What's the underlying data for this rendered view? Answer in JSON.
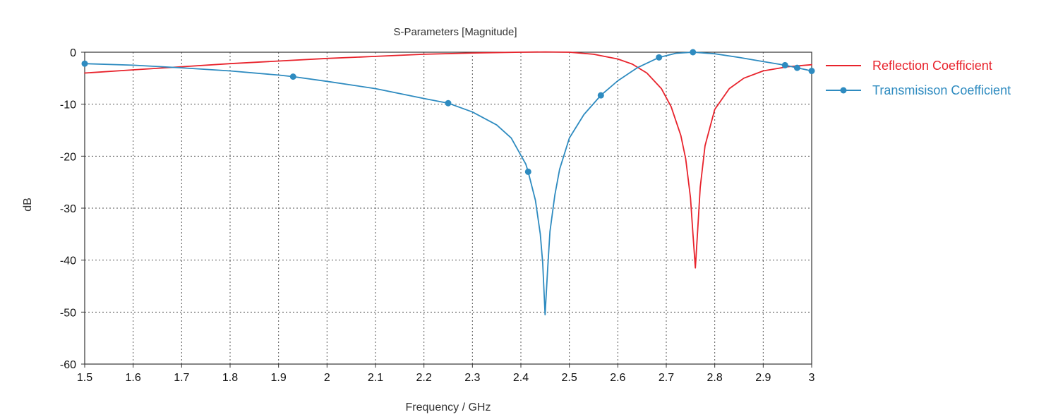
{
  "chart_data": {
    "type": "line",
    "title": "S-Parameters [Magnitude]",
    "xlabel": "Frequency / GHz",
    "ylabel": "dB",
    "xlim": [
      1.5,
      3.0
    ],
    "ylim": [
      -60,
      0
    ],
    "xticks": [
      1.5,
      1.6,
      1.7,
      1.8,
      1.9,
      2.0,
      2.1,
      2.2,
      2.3,
      2.4,
      2.5,
      2.6,
      2.7,
      2.8,
      2.9,
      3.0
    ],
    "xtick_labels": [
      "1.5",
      "1.6",
      "1.7",
      "1.8",
      "1.9",
      "2",
      "2.1",
      "2.2",
      "2.3",
      "2.4",
      "2.5",
      "2.6",
      "2.7",
      "2.8",
      "2.9",
      "3"
    ],
    "yticks": [
      0,
      -10,
      -20,
      -30,
      -40,
      -50,
      -60
    ],
    "ytick_labels": [
      "0",
      "-10",
      "-20",
      "-30",
      "-40",
      "-50",
      "-60"
    ],
    "grid": true,
    "legend_position": "right",
    "series": [
      {
        "name": "Reflection Coefficient",
        "color": "#e8232c",
        "markers": false,
        "x": [
          1.5,
          1.6,
          1.7,
          1.8,
          1.9,
          2.0,
          2.1,
          2.2,
          2.3,
          2.4,
          2.45,
          2.5,
          2.55,
          2.6,
          2.63,
          2.66,
          2.69,
          2.71,
          2.73,
          2.74,
          2.75,
          2.755,
          2.76,
          2.765,
          2.77,
          2.78,
          2.8,
          2.83,
          2.86,
          2.9,
          2.95,
          3.0
        ],
        "y": [
          -4.0,
          -3.4,
          -2.8,
          -2.2,
          -1.7,
          -1.2,
          -0.8,
          -0.4,
          -0.15,
          0.0,
          0.05,
          0.0,
          -0.4,
          -1.3,
          -2.3,
          -4.0,
          -7.0,
          -10.5,
          -16.0,
          -20.5,
          -28.0,
          -35.0,
          -41.5,
          -34.0,
          -26.0,
          -18.0,
          -11.0,
          -7.0,
          -5.0,
          -3.6,
          -2.8,
          -2.4
        ]
      },
      {
        "name": "Transmisison Coefficient",
        "color": "#2e8bc0",
        "markers": true,
        "marker_x": [
          1.5,
          1.93,
          2.25,
          2.415,
          2.565,
          2.685,
          2.755,
          2.945,
          2.97,
          3.0
        ],
        "marker_y": [
          -2.2,
          -4.7,
          -9.8,
          -23.0,
          -8.3,
          -1.0,
          0.0,
          -2.5,
          -3.0,
          -3.6
        ],
        "x": [
          1.5,
          1.6,
          1.7,
          1.8,
          1.9,
          1.93,
          2.0,
          2.1,
          2.2,
          2.25,
          2.3,
          2.35,
          2.38,
          2.41,
          2.415,
          2.43,
          2.44,
          2.445,
          2.45,
          2.455,
          2.46,
          2.47,
          2.48,
          2.5,
          2.53,
          2.565,
          2.6,
          2.64,
          2.685,
          2.72,
          2.755,
          2.8,
          2.85,
          2.9,
          2.945,
          2.97,
          3.0
        ],
        "y": [
          -2.2,
          -2.5,
          -3.0,
          -3.6,
          -4.4,
          -4.7,
          -5.6,
          -7.0,
          -8.9,
          -9.8,
          -11.5,
          -14.0,
          -16.5,
          -21.5,
          -23.0,
          -28.5,
          -35.0,
          -40.5,
          -50.5,
          -42.0,
          -34.5,
          -27.5,
          -22.5,
          -16.5,
          -12.0,
          -8.3,
          -5.5,
          -3.0,
          -1.0,
          -0.2,
          0.0,
          -0.3,
          -1.0,
          -1.8,
          -2.5,
          -3.0,
          -3.6
        ]
      }
    ]
  }
}
